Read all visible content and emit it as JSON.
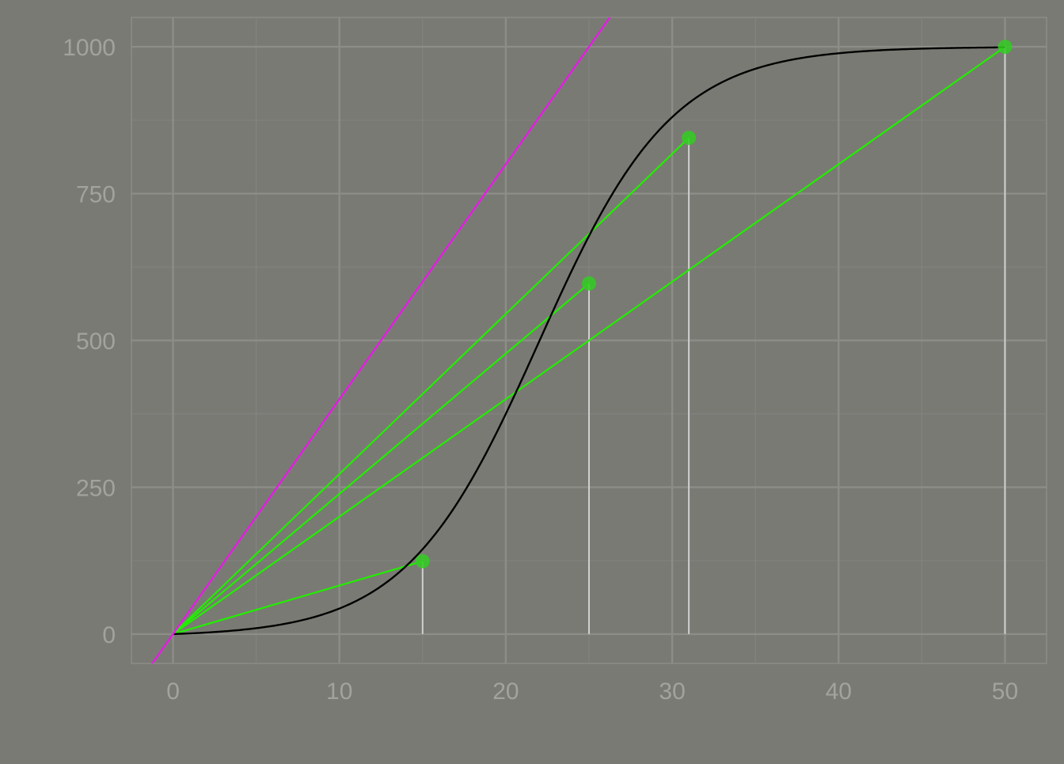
{
  "chart_data": {
    "type": "line",
    "title": "",
    "xlabel": "",
    "ylabel": "",
    "xlim": [
      -2.5,
      52.5
    ],
    "ylim": [
      -50,
      1050
    ],
    "x_ticks": [
      0,
      10,
      20,
      30,
      40,
      50
    ],
    "x_tick_labels": [
      "0",
      "10",
      "20",
      "30",
      "40",
      "50"
    ],
    "y_ticks": [
      0,
      250,
      500,
      750,
      1000
    ],
    "y_tick_labels": [
      "0",
      "250",
      "500",
      "750",
      "1000"
    ],
    "grid": true,
    "legend": "none",
    "curve": {
      "kind": "logistic",
      "capacity": 1000,
      "midpoint": 22,
      "rate": 0.25,
      "x_range": [
        0,
        50
      ],
      "color": "#000000"
    },
    "tangent_line": {
      "slope": 40,
      "intercept": 0,
      "color": "#e21ee2"
    },
    "marked_points": [
      {
        "x": 15,
        "y": 124
      },
      {
        "x": 25,
        "y": 597
      },
      {
        "x": 31,
        "y": 845
      },
      {
        "x": 50,
        "y": 1000
      }
    ],
    "secant_origin": {
      "x": 0,
      "y": 0
    },
    "colors": {
      "background": "#7a7a74",
      "panel": "#7a7a74",
      "grid_major": "#8d8d88",
      "grid_minor": "#828280",
      "axis_text": "#a3a39e",
      "secant": "#22ee00",
      "point": "#33cc22",
      "drop_line": "#cfcfcf",
      "curve": "#000000",
      "tangent": "#e21ee2"
    }
  }
}
